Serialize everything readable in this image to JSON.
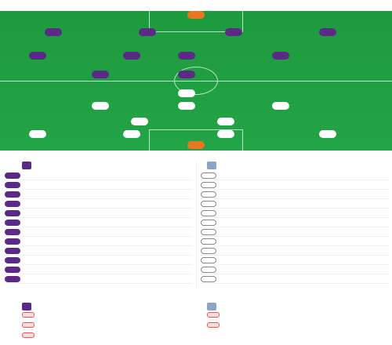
{
  "header": {
    "title": "",
    "subtitle": ""
  },
  "pitch": {
    "home_players": [
      {
        "num": "",
        "name": ""
      },
      {
        "num": "",
        "name": ""
      },
      {
        "num": "",
        "name": ""
      },
      {
        "num": "",
        "name": ""
      },
      {
        "num": "",
        "name": ""
      },
      {
        "num": "",
        "name": ""
      },
      {
        "num": "",
        "name": ""
      },
      {
        "num": "",
        "name": ""
      },
      {
        "num": "",
        "name": ""
      },
      {
        "num": "",
        "name": ""
      },
      {
        "num": "",
        "name": ""
      }
    ],
    "away_players": [
      {
        "num": "",
        "name": ""
      },
      {
        "num": "",
        "name": ""
      },
      {
        "num": "",
        "name": ""
      },
      {
        "num": "",
        "name": ""
      },
      {
        "num": "",
        "name": ""
      },
      {
        "num": "",
        "name": ""
      },
      {
        "num": "",
        "name": ""
      },
      {
        "num": "",
        "name": ""
      },
      {
        "num": "",
        "name": ""
      },
      {
        "num": "",
        "name": ""
      },
      {
        "num": "",
        "name": ""
      }
    ]
  },
  "subs": {
    "title": "",
    "home": {
      "team": "",
      "coach": "",
      "coach_role": "",
      "players": [
        {
          "num": "",
          "name": ""
        },
        {
          "num": "",
          "name": ""
        },
        {
          "num": "",
          "name": ""
        },
        {
          "num": "",
          "name": ""
        },
        {
          "num": "",
          "name": ""
        },
        {
          "num": "",
          "name": ""
        },
        {
          "num": "",
          "name": ""
        },
        {
          "num": "",
          "name": ""
        },
        {
          "num": "",
          "name": ""
        },
        {
          "num": "",
          "name": ""
        },
        {
          "num": "",
          "name": ""
        },
        {
          "num": "",
          "name": ""
        }
      ]
    },
    "away": {
      "team": "",
      "coach": "",
      "coach_role": "",
      "players": [
        {
          "num": "",
          "name": ""
        },
        {
          "num": "",
          "name": ""
        },
        {
          "num": "",
          "name": ""
        },
        {
          "num": "",
          "name": ""
        },
        {
          "num": "",
          "name": ""
        },
        {
          "num": "",
          "name": ""
        },
        {
          "num": "",
          "name": ""
        },
        {
          "num": "",
          "name": ""
        },
        {
          "num": "",
          "name": ""
        },
        {
          "num": "",
          "name": ""
        },
        {
          "num": "",
          "name": ""
        },
        {
          "num": "",
          "name": ""
        }
      ]
    }
  },
  "injuries": {
    "title": "",
    "home": {
      "team": "",
      "players": [
        {
          "name": ""
        },
        {
          "name": ""
        },
        {
          "name": ""
        }
      ]
    },
    "away": {
      "team": "",
      "players": [
        {
          "name": ""
        },
        {
          "name": ""
        }
      ]
    }
  }
}
